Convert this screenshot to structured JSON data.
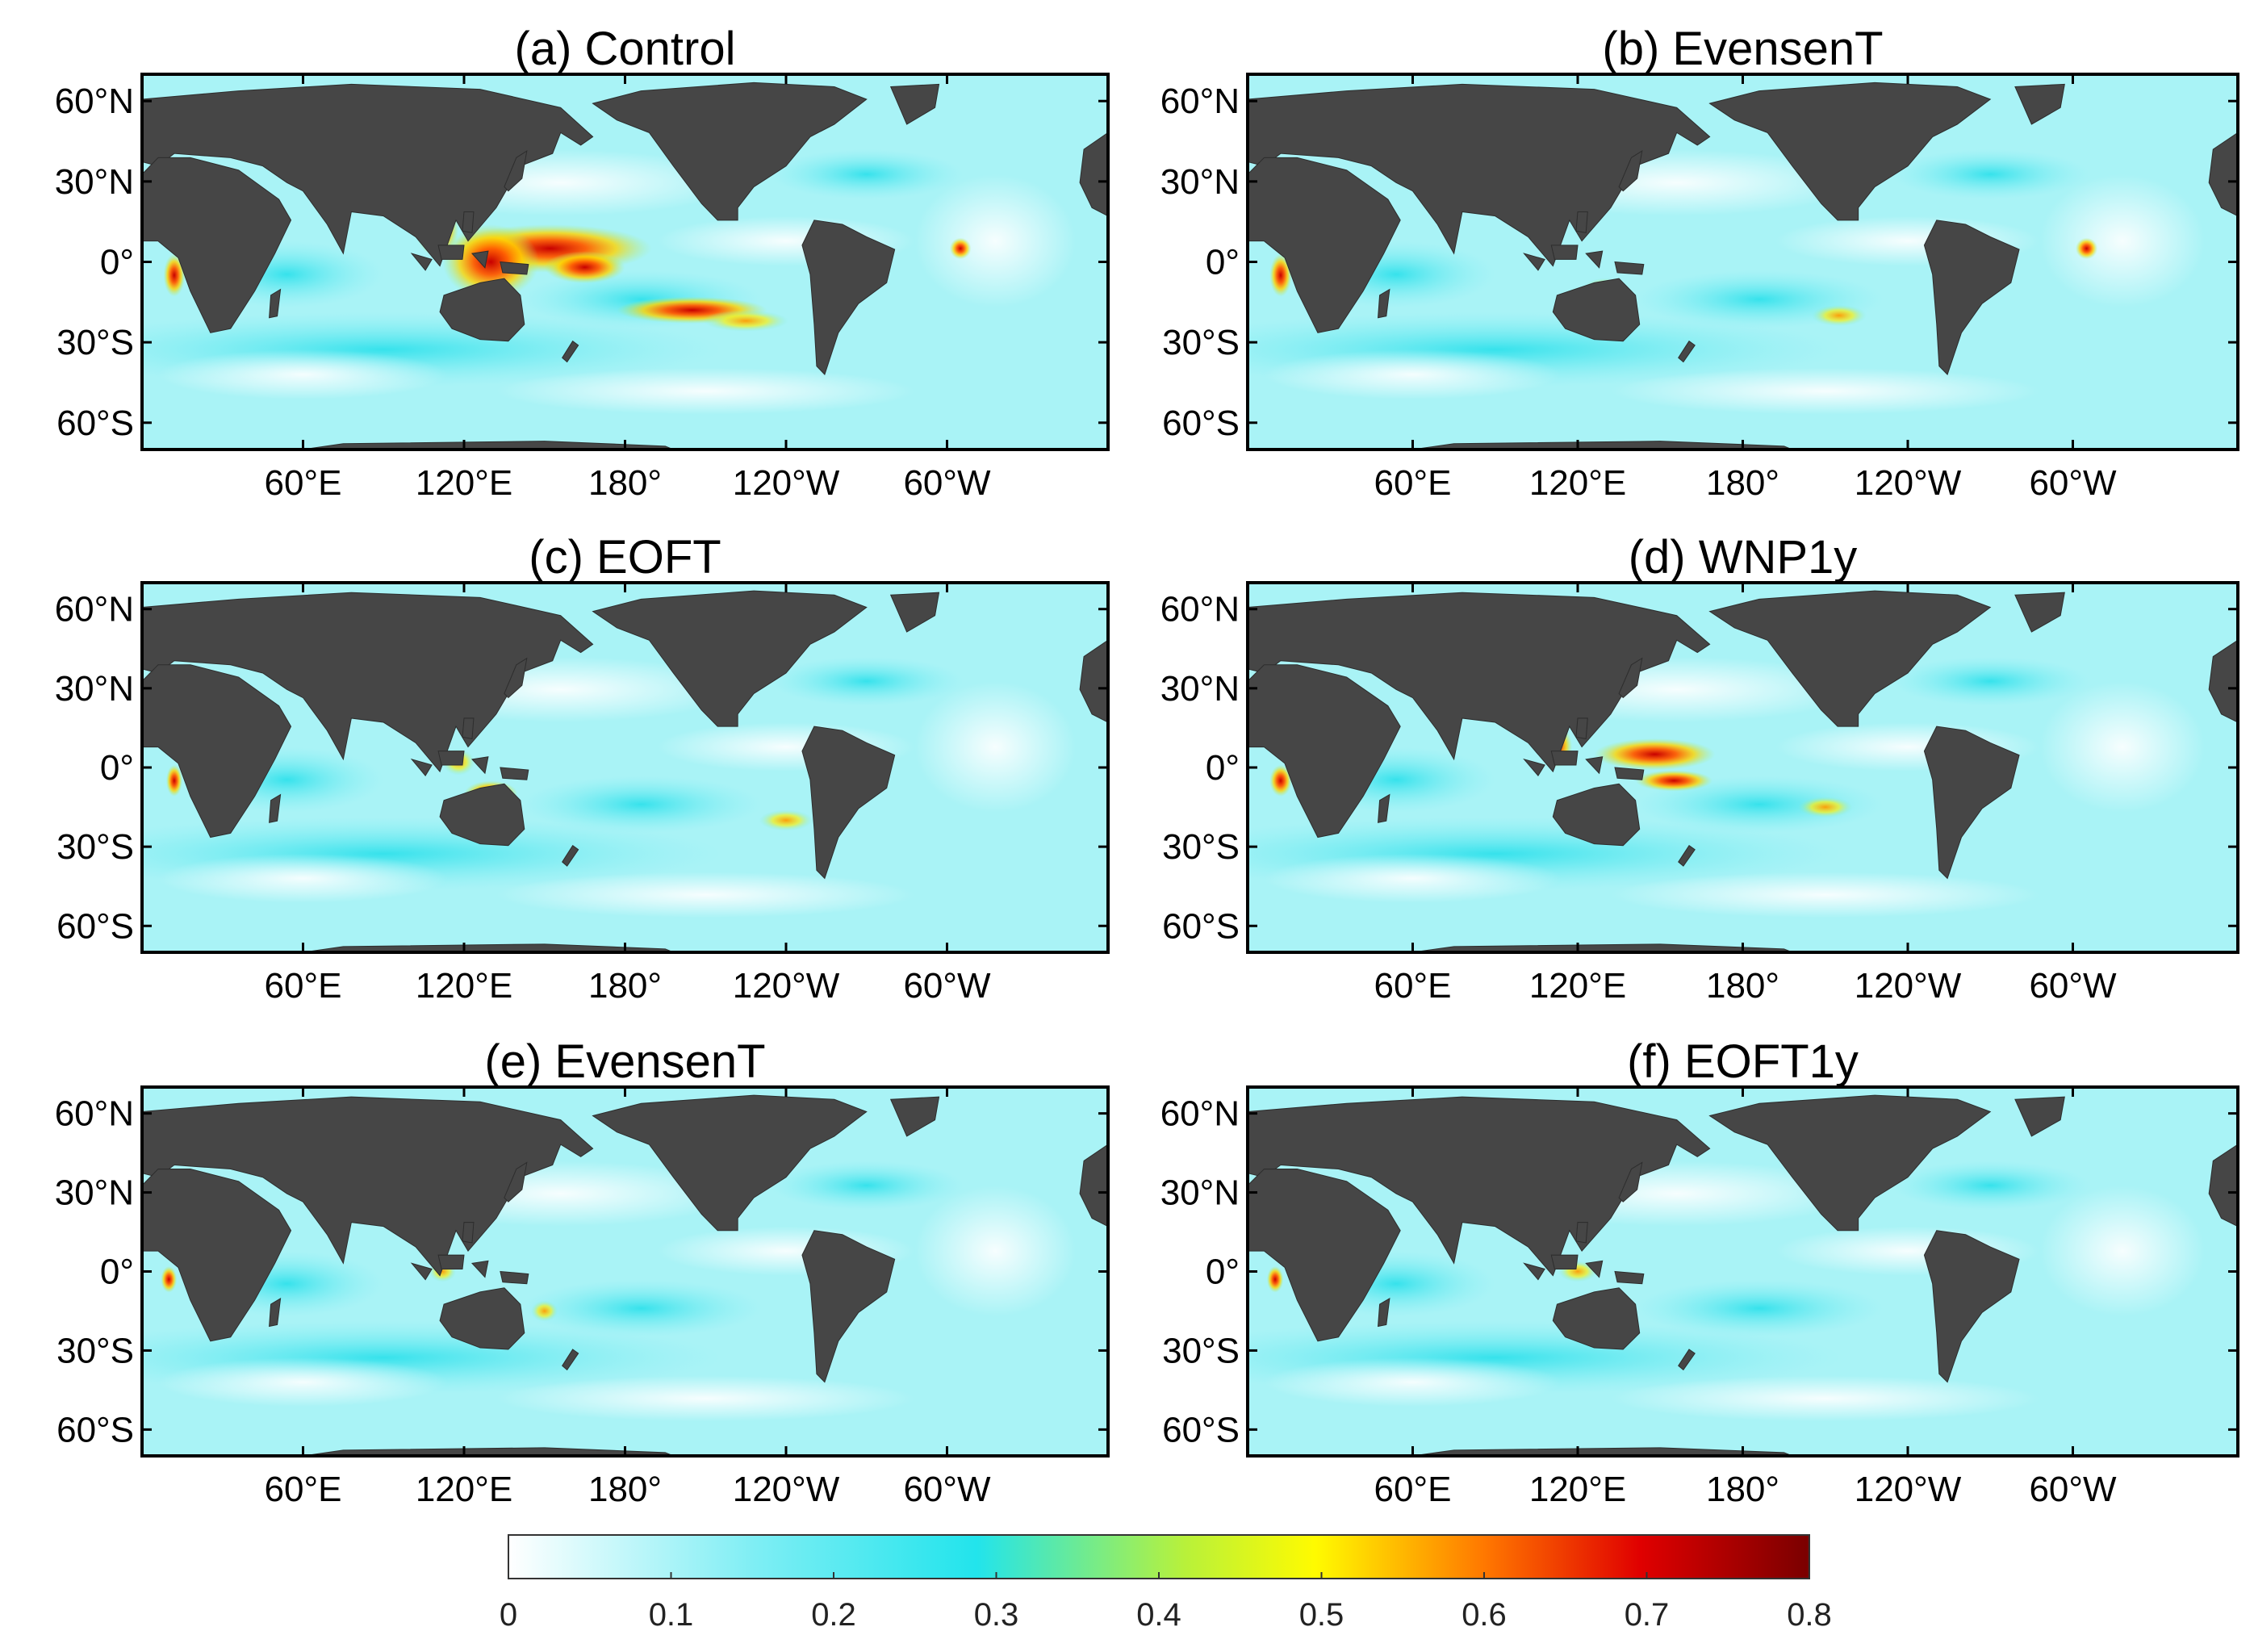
{
  "figure": {
    "panels": [
      {
        "id": "a",
        "title": "(a) Control",
        "xticks": [
          "60°E",
          "120°E",
          "180°",
          "120°W",
          "60°W"
        ],
        "hotspots": [
          {
            "lon": 152,
            "lat": 5,
            "rx": 38,
            "ry": 9,
            "v": 0.55
          },
          {
            "lon": 130,
            "lat": 0,
            "rx": 18,
            "ry": 14,
            "v": 0.7
          },
          {
            "lon": 110,
            "lat": 12,
            "rx": 8,
            "ry": 10,
            "v": 0.6
          },
          {
            "lon": 165,
            "lat": -2,
            "rx": 15,
            "ry": 6,
            "v": 0.62
          },
          {
            "lon": 205,
            "lat": -18,
            "rx": 28,
            "ry": 5,
            "v": 0.6
          },
          {
            "lon": 225,
            "lat": -22,
            "rx": 16,
            "ry": 4,
            "v": 0.45
          },
          {
            "lon": 125,
            "lat": -15,
            "rx": 10,
            "ry": 5,
            "v": 0.55
          },
          {
            "lon": 12,
            "lat": -5,
            "rx": 4,
            "ry": 8,
            "v": 0.65
          },
          {
            "lon": 128,
            "lat": 35,
            "rx": 4,
            "ry": 6,
            "v": 0.5
          },
          {
            "lon": 305,
            "lat": 5,
            "rx": 4,
            "ry": 4,
            "v": 0.55
          }
        ]
      },
      {
        "id": "b",
        "title": "(b) EvensenT",
        "xticks": [
          "60°E",
          "120°E",
          "180°",
          "120°W",
          "60°W"
        ],
        "hotspots": [
          {
            "lon": 215,
            "lat": -20,
            "rx": 10,
            "ry": 4,
            "v": 0.42
          },
          {
            "lon": 128,
            "lat": 35,
            "rx": 4,
            "ry": 6,
            "v": 0.55
          },
          {
            "lon": 12,
            "lat": -5,
            "rx": 4,
            "ry": 8,
            "v": 0.6
          },
          {
            "lon": 130,
            "lat": -10,
            "rx": 8,
            "ry": 4,
            "v": 0.45
          },
          {
            "lon": 305,
            "lat": 5,
            "rx": 4,
            "ry": 4,
            "v": 0.55
          }
        ]
      },
      {
        "id": "c",
        "title": "(c) EOFT",
        "xticks": [
          "60°E",
          "120°E",
          "180°",
          "120°W",
          "60°W"
        ],
        "hotspots": [
          {
            "lon": 240,
            "lat": -20,
            "rx": 10,
            "ry": 4,
            "v": 0.4
          },
          {
            "lon": 130,
            "lat": -10,
            "rx": 10,
            "ry": 5,
            "v": 0.55
          },
          {
            "lon": 118,
            "lat": 2,
            "rx": 6,
            "ry": 5,
            "v": 0.45
          },
          {
            "lon": 125,
            "lat": 30,
            "rx": 3,
            "ry": 6,
            "v": 0.5
          },
          {
            "lon": 12,
            "lat": -5,
            "rx": 3,
            "ry": 6,
            "v": 0.5
          }
        ]
      },
      {
        "id": "d",
        "title": "(d) WNP1y",
        "xticks": [
          "60°E",
          "120°E",
          "180°",
          "120°W",
          "60°W"
        ],
        "hotspots": [
          {
            "lon": 148,
            "lat": 5,
            "rx": 22,
            "ry": 6,
            "v": 0.5
          },
          {
            "lon": 112,
            "lat": 8,
            "rx": 6,
            "ry": 8,
            "v": 0.55
          },
          {
            "lon": 155,
            "lat": -5,
            "rx": 14,
            "ry": 4,
            "v": 0.5
          },
          {
            "lon": 210,
            "lat": -15,
            "rx": 10,
            "ry": 4,
            "v": 0.4
          },
          {
            "lon": 128,
            "lat": 35,
            "rx": 4,
            "ry": 6,
            "v": 0.5
          },
          {
            "lon": 12,
            "lat": -5,
            "rx": 4,
            "ry": 6,
            "v": 0.55
          }
        ]
      },
      {
        "id": "e",
        "title": "(e) EvensenT",
        "xticks": [
          "60°E",
          "120°E",
          "180°",
          "120°W",
          "60°W"
        ],
        "hotspots": [
          {
            "lon": 128,
            "lat": 35,
            "rx": 5,
            "ry": 8,
            "v": 0.65
          },
          {
            "lon": 112,
            "lat": 0,
            "rx": 5,
            "ry": 4,
            "v": 0.45
          },
          {
            "lon": 150,
            "lat": -15,
            "rx": 5,
            "ry": 4,
            "v": 0.45
          },
          {
            "lon": 10,
            "lat": -3,
            "rx": 3,
            "ry": 5,
            "v": 0.5
          }
        ]
      },
      {
        "id": "f",
        "title": "(f) EOFT1y",
        "xticks": [
          "60°E",
          "120°E",
          "180°",
          "120°W",
          "60°W"
        ],
        "hotspots": [
          {
            "lon": 128,
            "lat": 35,
            "rx": 4,
            "ry": 7,
            "v": 0.55
          },
          {
            "lon": 120,
            "lat": 0,
            "rx": 7,
            "ry": 4,
            "v": 0.45
          },
          {
            "lon": 10,
            "lat": -3,
            "rx": 3,
            "ry": 5,
            "v": 0.5
          }
        ]
      }
    ],
    "yticks": [
      {
        "label": "60°N",
        "lat": 60
      },
      {
        "label": "30°N",
        "lat": 30
      },
      {
        "label": "0°",
        "lat": 0
      },
      {
        "label": "30°S",
        "lat": -30
      },
      {
        "label": "60°S",
        "lat": -60
      }
    ],
    "xtick_lons": [
      60,
      120,
      180,
      240,
      300
    ],
    "map_extent": {
      "lon": [
        0,
        360
      ],
      "lat": [
        -70,
        70
      ]
    },
    "land_color": "#464646",
    "colorbar": {
      "ticks": [
        "0",
        "0.1",
        "0.2",
        "0.3",
        "0.4",
        "0.5",
        "0.6",
        "0.7",
        "0.8"
      ],
      "range": [
        0,
        0.8
      ],
      "colors": [
        "#ffffff",
        "#22e4ec",
        "#fffb00",
        "#ff6c00",
        "#e00000",
        "#7a0000"
      ]
    }
  }
}
